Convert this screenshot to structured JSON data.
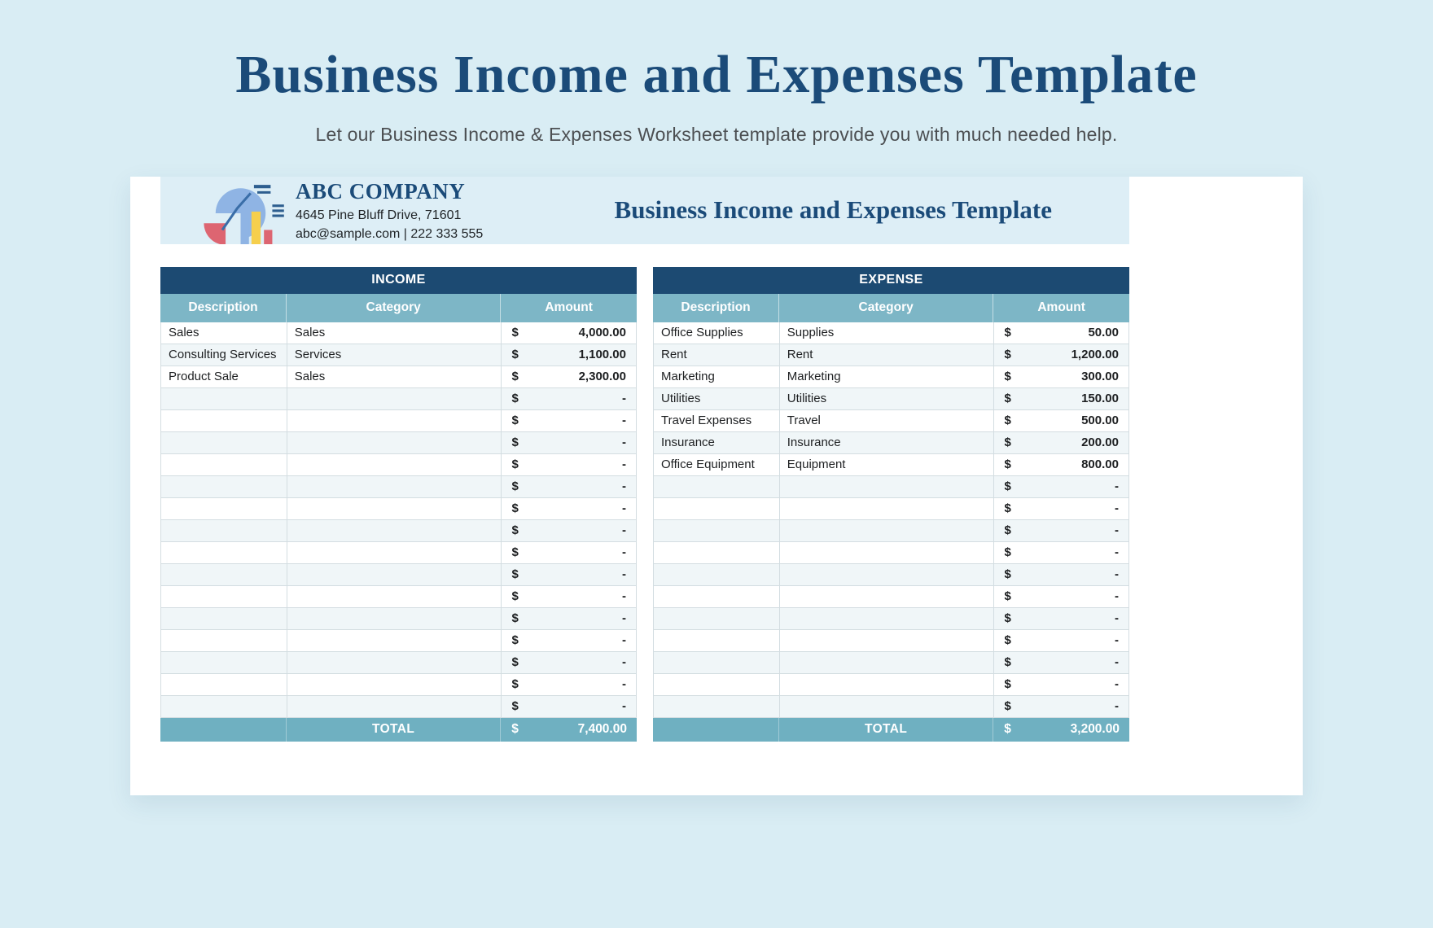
{
  "page": {
    "title": "Business Income and Expenses Template",
    "subtitle": "Let our Business Income & Expenses Worksheet template provide you with much needed help."
  },
  "company": {
    "name": "ABC COMPANY",
    "address": "4645 Pine Bluff Drive, 71601",
    "contact": "abc@sample.com | 222 333 555",
    "sheet_title": "Business Income and Expenses Template",
    "logo_icon": "pie-bar-chart-icon"
  },
  "tables": {
    "columns": [
      "Description",
      "Category",
      "Amount"
    ],
    "currency_symbol": "$",
    "empty_value": "-",
    "total_label": "TOTAL",
    "income": {
      "title": "INCOME",
      "rows": [
        {
          "description": "Sales",
          "category": "Sales",
          "amount": "4,000.00"
        },
        {
          "description": "Consulting Services",
          "category": "Services",
          "amount": "1,100.00"
        },
        {
          "description": "Product Sale",
          "category": "Sales",
          "amount": "2,300.00"
        }
      ],
      "empty_rows": 15,
      "total": "7,400.00"
    },
    "expense": {
      "title": "EXPENSE",
      "rows": [
        {
          "description": "Office Supplies",
          "category": "Supplies",
          "amount": "50.00"
        },
        {
          "description": "Rent",
          "category": "Rent",
          "amount": "1,200.00"
        },
        {
          "description": "Marketing",
          "category": "Marketing",
          "amount": "300.00"
        },
        {
          "description": "Utilities",
          "category": "Utilities",
          "amount": "150.00"
        },
        {
          "description": "Travel Expenses",
          "category": "Travel",
          "amount": "500.00"
        },
        {
          "description": "Insurance",
          "category": "Insurance",
          "amount": "200.00"
        },
        {
          "description": "Office Equipment",
          "category": "Equipment",
          "amount": "800.00"
        }
      ],
      "empty_rows": 11,
      "total": "3,200.00"
    }
  },
  "colors": {
    "page_bg": "#d9edf4",
    "title_navy": "#1b4b79",
    "table_title_navy": "#1c4a72",
    "column_header_teal": "#7db6c6",
    "total_row_teal": "#6fb0c1",
    "alt_row": "#f0f6f8",
    "band_bg": "#ddeef6",
    "card_bg": "#ffffff",
    "logo_blue": "#8fb4e4",
    "logo_red": "#dd6571",
    "logo_yellow": "#f6cf4d"
  }
}
